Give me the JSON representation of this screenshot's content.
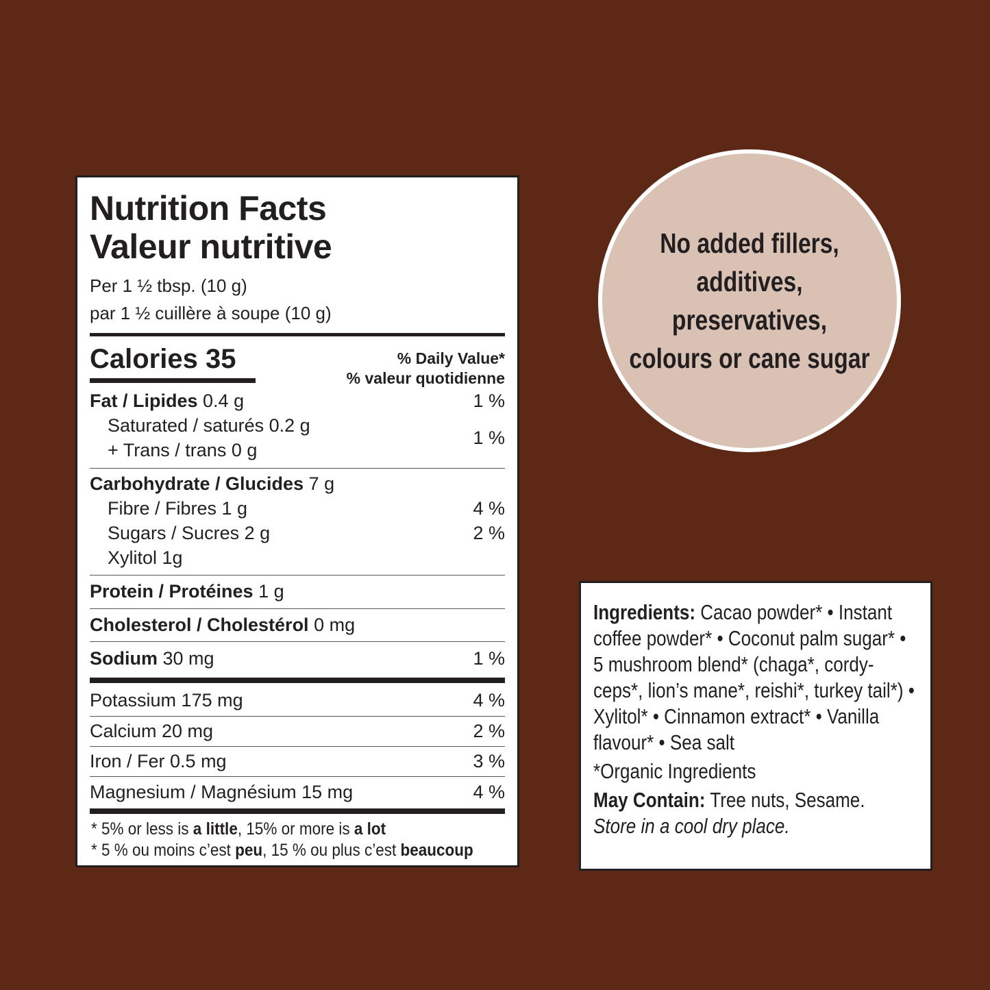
{
  "nutrition": {
    "title_en": "Nutrition Facts",
    "title_fr": "Valeur nutritive",
    "serving_en": "Per 1 ½ tbsp. (10 g)",
    "serving_fr": "par 1 ½ cuillère à soupe (10 g)",
    "calories": "Calories 35",
    "dv_en": "% Daily Value*",
    "dv_fr": "% valeur quotidienne",
    "fat": {
      "label": "Fat / Lipides",
      "amount": " 0.4 g",
      "dv": "1 %"
    },
    "saturated": "Saturated / saturés 0.2 g",
    "trans": "+ Trans / trans 0 g",
    "sat_trans_dv": "1 %",
    "carb": {
      "label": "Carbohydrate / Glucides",
      "amount": " 7 g"
    },
    "fibre": {
      "label": "Fibre / Fibres 1 g",
      "dv": "4 %"
    },
    "sugars": {
      "label": "Sugars / Sucres 2 g",
      "dv": "2 %"
    },
    "xylitol": "Xylitol 1g",
    "protein": {
      "label": "Protein / Protéines",
      "amount": " 1 g"
    },
    "cholesterol": {
      "label": "Cholesterol / Cholestérol",
      "amount": " 0 mg"
    },
    "sodium": {
      "label": "Sodium",
      "amount": " 30 mg",
      "dv": "1 %"
    },
    "minerals": [
      {
        "label": "Potassium 175 mg",
        "dv": "4 %"
      },
      {
        "label": "Calcium 20 mg",
        "dv": "2 %"
      },
      {
        "label": "Iron / Fer 0.5 mg",
        "dv": "3 %"
      },
      {
        "label": "Magnesium / Magnésium 15 mg",
        "dv": "4 %"
      }
    ],
    "foot_en": [
      "* 5% or less is ",
      "a little",
      ", 15% or more is ",
      "a lot"
    ],
    "foot_fr": [
      "* 5 % ou moins c’est ",
      "peu",
      ", 15 % ou plus c’est ",
      "beaucoup"
    ]
  },
  "badge": {
    "text": "No added fillers, additives, preservatives, colours or cane sugar"
  },
  "ingredients": {
    "label": "Ingredients:",
    "text": " Cacao powder* • Instant coffee powder* • Coconut palm sugar* • 5 mushroom blend* (chaga*, cordy-ceps*, lion’s mane*, reishi*, turkey tail*) • Xylitol* • Cinnamon extract* • Vanilla flavour* • Sea salt",
    "organic": "*Organic Ingredients",
    "may_label": "May Contain:",
    "may_text": " Tree nuts, Sesame.",
    "storage": "Store in a cool dry place."
  },
  "colors": {
    "background": "#5d2916",
    "badge": "#d9c1b4"
  }
}
